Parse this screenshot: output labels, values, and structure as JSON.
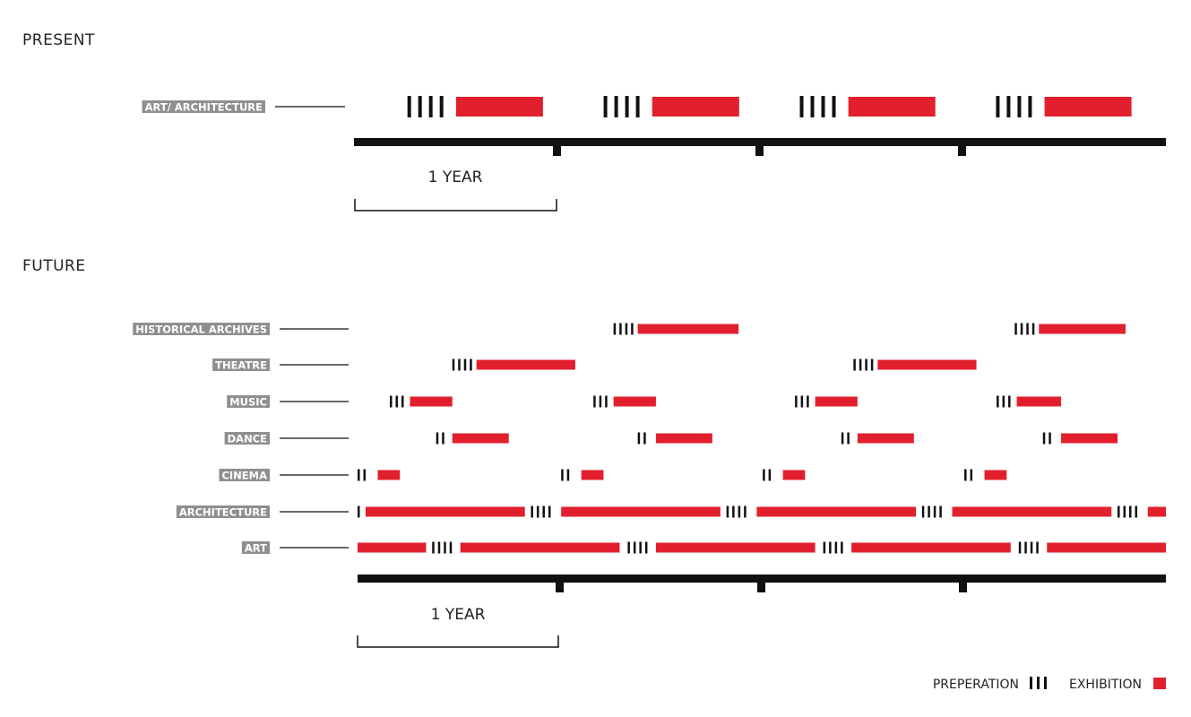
{
  "colors": {
    "exhibition": "#e21f2d",
    "preparation": "#111111",
    "axis": "#111111",
    "label_bg": "#8f8f8f",
    "label_text": "#ffffff"
  },
  "present": {
    "heading": "PRESENT",
    "scale_label": "1 YEAR",
    "rows": [
      {
        "label": "ART/ ARCHITECTURE",
        "events": [
          {
            "prep_start": 0.26,
            "prep_marks": 4,
            "exhibit_start": 0.5,
            "exhibit_end": 0.93
          },
          {
            "prep_start": 1.23,
            "prep_marks": 4,
            "exhibit_start": 1.47,
            "exhibit_end": 1.9
          },
          {
            "prep_start": 2.2,
            "prep_marks": 4,
            "exhibit_start": 2.44,
            "exhibit_end": 2.87
          },
          {
            "prep_start": 3.17,
            "prep_marks": 4,
            "exhibit_start": 3.41,
            "exhibit_end": 3.84
          }
        ]
      }
    ]
  },
  "future": {
    "heading": "FUTURE",
    "scale_label": "1 YEAR",
    "rows": [
      {
        "label": "HISTORICAL ARCHIVES",
        "events": [
          {
            "prep_start": 1.27,
            "prep_marks": 4,
            "exhibit_start": 1.39,
            "exhibit_end": 1.89
          },
          {
            "prep_start": 3.26,
            "prep_marks": 4,
            "exhibit_start": 3.38,
            "exhibit_end": 3.81
          }
        ]
      },
      {
        "label": "THEATRE",
        "events": [
          {
            "prep_start": 0.47,
            "prep_marks": 4,
            "exhibit_start": 0.59,
            "exhibit_end": 1.08
          },
          {
            "prep_start": 2.46,
            "prep_marks": 4,
            "exhibit_start": 2.58,
            "exhibit_end": 3.07
          }
        ]
      },
      {
        "label": "MUSIC",
        "events": [
          {
            "prep_start": 0.16,
            "prep_marks": 3,
            "exhibit_start": 0.26,
            "exhibit_end": 0.47
          },
          {
            "prep_start": 1.17,
            "prep_marks": 3,
            "exhibit_start": 1.27,
            "exhibit_end": 1.48
          },
          {
            "prep_start": 2.17,
            "prep_marks": 3,
            "exhibit_start": 2.27,
            "exhibit_end": 2.48
          },
          {
            "prep_start": 3.17,
            "prep_marks": 3,
            "exhibit_start": 3.27,
            "exhibit_end": 3.49
          }
        ]
      },
      {
        "label": "DANCE",
        "events": [
          {
            "prep_start": 0.39,
            "prep_marks": 2,
            "exhibit_start": 0.47,
            "exhibit_end": 0.75
          },
          {
            "prep_start": 1.39,
            "prep_marks": 2,
            "exhibit_start": 1.48,
            "exhibit_end": 1.76
          },
          {
            "prep_start": 2.4,
            "prep_marks": 2,
            "exhibit_start": 2.48,
            "exhibit_end": 2.76
          },
          {
            "prep_start": 3.4,
            "prep_marks": 2,
            "exhibit_start": 3.49,
            "exhibit_end": 3.77
          }
        ]
      },
      {
        "label": "CINEMA",
        "events": [
          {
            "prep_start": 0.0,
            "prep_marks": 2,
            "exhibit_start": 0.1,
            "exhibit_end": 0.21
          },
          {
            "prep_start": 1.01,
            "prep_marks": 2,
            "exhibit_start": 1.11,
            "exhibit_end": 1.22
          },
          {
            "prep_start": 2.01,
            "prep_marks": 2,
            "exhibit_start": 2.11,
            "exhibit_end": 2.22
          },
          {
            "prep_start": 3.01,
            "prep_marks": 2,
            "exhibit_start": 3.11,
            "exhibit_end": 3.22
          }
        ]
      },
      {
        "label": "ARCHITECTURE",
        "events": [
          {
            "prep_start": 0.0,
            "prep_marks": 1,
            "exhibit_start": 0.04,
            "exhibit_end": 0.83
          },
          {
            "prep_start": 0.86,
            "prep_marks": 4,
            "exhibit_start": 1.01,
            "exhibit_end": 1.8
          },
          {
            "prep_start": 1.83,
            "prep_marks": 4,
            "exhibit_start": 1.98,
            "exhibit_end": 2.77
          },
          {
            "prep_start": 2.8,
            "prep_marks": 4,
            "exhibit_start": 2.95,
            "exhibit_end": 3.74
          },
          {
            "prep_start": 3.77,
            "prep_marks": 4,
            "exhibit_start": 3.92,
            "exhibit_end": 4.01
          }
        ]
      },
      {
        "label": "ART",
        "events": [
          {
            "prep_start": 0.0,
            "prep_marks": 0,
            "exhibit_start": 0.0,
            "exhibit_end": 0.34
          },
          {
            "prep_start": 0.37,
            "prep_marks": 4,
            "exhibit_start": 0.51,
            "exhibit_end": 1.3
          },
          {
            "prep_start": 1.34,
            "prep_marks": 4,
            "exhibit_start": 1.48,
            "exhibit_end": 2.27
          },
          {
            "prep_start": 2.31,
            "prep_marks": 4,
            "exhibit_start": 2.45,
            "exhibit_end": 3.24
          },
          {
            "prep_start": 3.28,
            "prep_marks": 4,
            "exhibit_start": 3.42,
            "exhibit_end": 4.01
          }
        ]
      }
    ]
  },
  "legend": {
    "preparation_label": "PREPERATION",
    "exhibition_label": "EXHIBITION"
  }
}
